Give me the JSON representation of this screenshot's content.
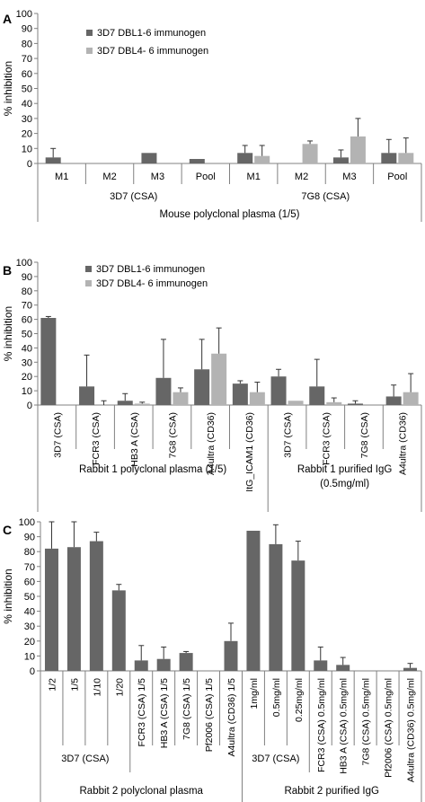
{
  "colors": {
    "dbl1_6": "#666666",
    "dbl4_6": "#b3b3b3",
    "axis": "#808080",
    "text": "#000000"
  },
  "chart_data": [
    {
      "panel": "A",
      "type": "bar",
      "ylabel": "% inhibition",
      "ylim": [
        0,
        100
      ],
      "yticks": [
        0,
        10,
        20,
        30,
        40,
        50,
        60,
        70,
        80,
        90,
        100
      ],
      "legend_placement": "top-center",
      "series": [
        {
          "name": "3D7 DBL1-6 immunogen",
          "color": "#666666"
        },
        {
          "name": "3D7 DBL4- 6 immunogen",
          "color": "#b3b3b3"
        }
      ],
      "categories": [
        "M1",
        "M2",
        "M3",
        "Pool",
        "M1",
        "M2",
        "M3",
        "Pool"
      ],
      "values": {
        "3D7 DBL1-6 immunogen": [
          4,
          0,
          7,
          3,
          7,
          0,
          4,
          7
        ],
        "3D7 DBL4- 6 immunogen": [
          0,
          0,
          0,
          0,
          5,
          13,
          18,
          7
        ]
      },
      "errors": {
        "3D7 DBL1-6 immunogen": [
          6,
          0,
          0,
          0,
          5,
          0,
          5,
          9
        ],
        "3D7 DBL4- 6 immunogen": [
          0,
          0,
          0,
          0,
          7,
          2,
          12,
          10
        ]
      },
      "groups": [
        {
          "label": "3D7 (CSA)",
          "start": 0,
          "end": 3
        },
        {
          "label": "7G8 (CSA)",
          "start": 4,
          "end": 7
        }
      ],
      "supergroups": [
        {
          "label": "Mouse polyclonal plasma (1/5)",
          "start": 0,
          "end": 7
        }
      ]
    },
    {
      "panel": "B",
      "type": "bar",
      "ylabel": "% inhibition",
      "ylim": [
        0,
        100
      ],
      "yticks": [
        0,
        10,
        20,
        30,
        40,
        50,
        60,
        70,
        80,
        90,
        100
      ],
      "legend_placement": "top-left",
      "series": [
        {
          "name": "3D7 DBL1-6 immunogen",
          "color": "#666666"
        },
        {
          "name": "3D7 DBL4- 6 immunogen",
          "color": "#b3b3b3"
        }
      ],
      "categories": [
        "3D7 (CSA)",
        "FCR3 (CSA)",
        "HB3 A (CSA)",
        "7G8 (CSA)",
        "A4ultra (CD36)",
        "ItG_ICAM1 (CD36)",
        "3D7 (CSA)",
        "FCR3 (CSA)",
        "7G8 (CSA)",
        "A4ultra (CD36)"
      ],
      "values": {
        "3D7 DBL1-6 immunogen": [
          61,
          13,
          3,
          19,
          25,
          15,
          20,
          13,
          1,
          6
        ],
        "3D7 DBL4- 6 immunogen": [
          0,
          0,
          1,
          9,
          36,
          9,
          3,
          2,
          0,
          9
        ]
      },
      "errors": {
        "3D7 DBL1-6 immunogen": [
          1,
          22,
          5,
          27,
          21,
          2,
          5,
          19,
          2,
          8
        ],
        "3D7 DBL4- 6 immunogen": [
          0,
          3,
          1,
          3,
          18,
          7,
          0,
          3,
          0,
          13
        ]
      },
      "groups": [],
      "supergroups": [
        {
          "label": "Rabbit 1 polyclonal plasma (1/5)",
          "start": 0,
          "end": 5
        },
        {
          "label": "Rabbit 1 purified IgG\n(0.5mg/ml)",
          "start": 6,
          "end": 9
        }
      ]
    },
    {
      "panel": "C",
      "type": "bar",
      "ylabel": "% inhibition",
      "ylim": [
        0,
        100
      ],
      "yticks": [
        0,
        10,
        20,
        30,
        40,
        50,
        60,
        70,
        80,
        90,
        100
      ],
      "series": [
        {
          "name": "",
          "color": "#666666"
        }
      ],
      "categories": [
        "1/2",
        "1/5",
        "1/10",
        "1/20",
        "FCR3 (CSA)  1/5",
        "HB3 A (CSA)  1/5",
        "7G8  (CSA)  1/5",
        "Pf2006  (CSA)  1/5",
        "A4ultra (CD36)  1/5",
        "1mg/ml",
        "0.5mg/ml",
        "0.25mg/ml",
        "FCR3 (CSA) 0.5mg/ml",
        "HB3 A (CSA) 0.5mg/ml",
        "7G8 (CSA) 0.5mg/ml",
        "Pf2006 (CSA) 0.5mg/ml",
        "A4ultra (CD36) 0.5mg/ml"
      ],
      "values": {
        "main": [
          82,
          83,
          87,
          54,
          7,
          8,
          12,
          0,
          20,
          94,
          85,
          74,
          7,
          4,
          0,
          0,
          2
        ]
      },
      "errors": {
        "main": [
          18,
          17,
          6,
          4,
          10,
          8,
          1,
          0,
          12,
          0,
          13,
          13,
          9,
          5,
          0,
          0,
          3
        ]
      },
      "groups": [
        {
          "label": "3D7 (CSA)",
          "start": 0,
          "end": 3
        },
        {
          "label": "3D7 (CSA)",
          "start": 9,
          "end": 11
        }
      ],
      "supergroups": [
        {
          "label": "Rabbit 2 polyclonal plasma",
          "start": 0,
          "end": 8
        },
        {
          "label": "Rabbit 2 purified IgG",
          "start": 9,
          "end": 16
        }
      ]
    }
  ]
}
